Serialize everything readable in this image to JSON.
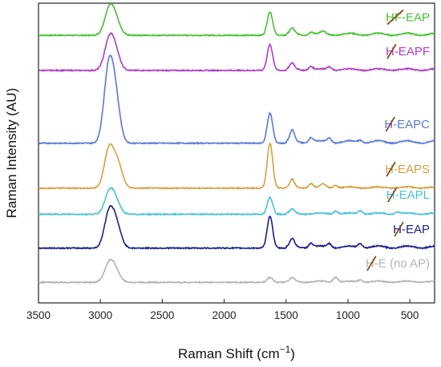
{
  "chart_data": {
    "type": "line",
    "title": "",
    "xlabel": "Raman Shift (cm−1)",
    "ylabel": "Raman Intensity (AU)",
    "xlim": [
      3500,
      300
    ],
    "x_reversed": true,
    "x_ticks": [
      3500,
      3000,
      2500,
      2000,
      1500,
      1000,
      500
    ],
    "y_ticks_shown": false,
    "grid": false,
    "legend": "labels placed at right end of each trace",
    "strike_color": "#8B4A1E",
    "series": [
      {
        "name": "HF-EAP",
        "color": "#45C232",
        "offset": 6.2,
        "baseline": 0.05,
        "peaks": [
          [
            2930,
            0.55
          ],
          [
            2880,
            0.35
          ],
          [
            1630,
            0.55
          ],
          [
            1450,
            0.12
          ],
          [
            1300,
            0.06
          ],
          [
            1200,
            0.05
          ]
        ],
        "tail": 0.05
      },
      {
        "name": "H-EAPF",
        "color": "#B43ACB",
        "offset": 5.4,
        "baseline": 0.03,
        "peaks": [
          [
            2930,
            0.65
          ],
          [
            2880,
            0.4
          ],
          [
            1630,
            0.6
          ],
          [
            1450,
            0.14
          ],
          [
            1300,
            0.08
          ],
          [
            1150,
            0.07
          ]
        ],
        "tail": 0.04
      },
      {
        "name": "H-EAPC",
        "color": "#5B78DB",
        "offset": 3.7,
        "baseline": 0.03,
        "peaks": [
          [
            2935,
            1.6
          ],
          [
            2880,
            1.0
          ],
          [
            1630,
            0.7
          ],
          [
            1450,
            0.25
          ],
          [
            1300,
            0.12
          ],
          [
            1150,
            0.1
          ],
          [
            900,
            0.06
          ]
        ],
        "tail": 0.06
      },
      {
        "name": "H-EAPS",
        "color": "#D4A042",
        "offset": 2.65,
        "baseline": 0.03,
        "peaks": [
          [
            2930,
            0.9
          ],
          [
            2860,
            0.55
          ],
          [
            1630,
            1.05
          ],
          [
            1450,
            0.18
          ],
          [
            1300,
            0.1
          ],
          [
            1200,
            0.08
          ],
          [
            1100,
            0.06
          ]
        ],
        "tail": 0.03
      },
      {
        "name": "H-EAPL",
        "color": "#46C3D6",
        "offset": 2.05,
        "baseline": 0.02,
        "peaks": [
          [
            2930,
            0.45
          ],
          [
            2880,
            0.3
          ],
          [
            1630,
            0.4
          ],
          [
            1450,
            0.1
          ],
          [
            1100,
            0.07
          ],
          [
            900,
            0.08
          ],
          [
            600,
            0.05
          ]
        ],
        "tail": 0.03
      },
      {
        "name": "H-EAP",
        "color": "#1A1E8E",
        "offset": 1.25,
        "baseline": 0.03,
        "peaks": [
          [
            2930,
            0.8
          ],
          [
            2870,
            0.5
          ],
          [
            1630,
            0.75
          ],
          [
            1450,
            0.18
          ],
          [
            1300,
            0.1
          ],
          [
            1150,
            0.09
          ],
          [
            900,
            0.1
          ]
        ],
        "tail": 0.05
      },
      {
        "name": "H-E (no AP)",
        "color": "#B4B4B4",
        "offset": 0.45,
        "baseline": 0.03,
        "peaks": [
          [
            2930,
            0.4
          ],
          [
            2880,
            0.25
          ],
          [
            1630,
            0.12
          ],
          [
            1450,
            0.08
          ],
          [
            1100,
            0.12
          ],
          [
            900,
            0.05
          ]
        ],
        "tail": 0.03
      }
    ],
    "label_text": {
      "HF-EAP": {
        "struck": "HF",
        "rest": "-EAP"
      },
      "H-EAPF": {
        "struck": "H",
        "rest": "-EAPF"
      },
      "H-EAPC": {
        "struck": "H",
        "rest": "-EAPC"
      },
      "H-EAPS": {
        "struck": "H",
        "rest": "-EAPS"
      },
      "H-EAPL": {
        "struck": "H",
        "rest": "-EAPL"
      },
      "H-EAP": {
        "struck": "H",
        "rest": "-EAP"
      },
      "H-E (no AP)": {
        "struck": "H",
        "rest": "-E (no AP)"
      }
    }
  }
}
